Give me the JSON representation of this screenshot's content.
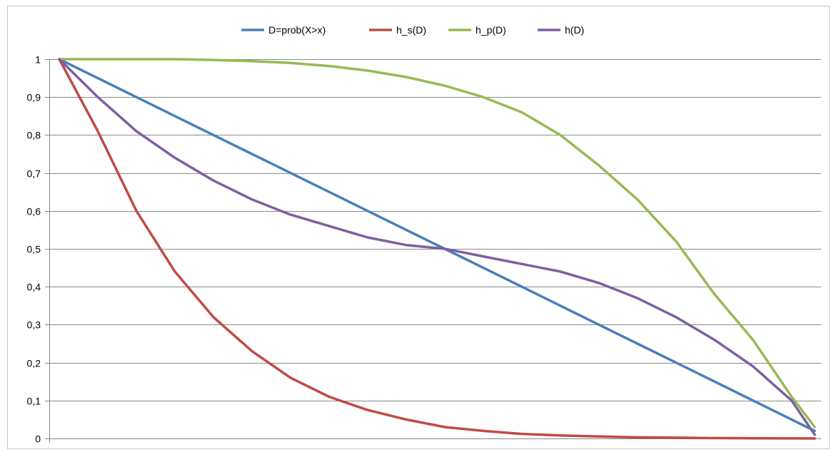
{
  "chart_data": {
    "type": "line",
    "title": "",
    "xlabel": "",
    "ylabel": "",
    "legend_position": "top",
    "grid": true,
    "ylim": [
      0,
      1
    ],
    "yticks": [
      {
        "value": 0,
        "label": "0"
      },
      {
        "value": 0.1,
        "label": "0,1"
      },
      {
        "value": 0.2,
        "label": "0,2"
      },
      {
        "value": 0.3,
        "label": "0,3"
      },
      {
        "value": 0.4,
        "label": "0,4"
      },
      {
        "value": 0.5,
        "label": "0,5"
      },
      {
        "value": 0.6,
        "label": "0,6"
      },
      {
        "value": 0.7,
        "label": "0,7"
      },
      {
        "value": 0.8,
        "label": "0,8"
      },
      {
        "value": 0.9,
        "label": "0,9"
      },
      {
        "value": 1,
        "label": "1"
      }
    ],
    "x": [
      0,
      0.05,
      0.1,
      0.15,
      0.2,
      0.25,
      0.3,
      0.35,
      0.4,
      0.45,
      0.5,
      0.55,
      0.6,
      0.65,
      0.7,
      0.75,
      0.8,
      0.85,
      0.9,
      0.95,
      0.98
    ],
    "series": [
      {
        "name": "D=prob(X>x)",
        "color": "#4a7ebb",
        "values": [
          1,
          0.95,
          0.9,
          0.85,
          0.8,
          0.75,
          0.7,
          0.65,
          0.6,
          0.55,
          0.5,
          0.45,
          0.4,
          0.35,
          0.3,
          0.25,
          0.2,
          0.15,
          0.1,
          0.05,
          0.02
        ]
      },
      {
        "name": "h_s(D)",
        "color": "#be4b48",
        "values": [
          1,
          0.81,
          0.6,
          0.44,
          0.32,
          0.23,
          0.16,
          0.11,
          0.075,
          0.05,
          0.03,
          0.02,
          0.012,
          0.008,
          0.005,
          0.003,
          0.002,
          0.001,
          0.0005,
          0.0002,
          0
        ]
      },
      {
        "name": "h_p(D)",
        "color": "#98b954",
        "values": [
          1,
          1,
          1,
          1,
          0.998,
          0.995,
          0.99,
          0.982,
          0.97,
          0.953,
          0.93,
          0.9,
          0.86,
          0.8,
          0.72,
          0.63,
          0.52,
          0.38,
          0.26,
          0.11,
          0.03
        ]
      },
      {
        "name": "h(D)",
        "color": "#7d60a0",
        "values": [
          1,
          0.9,
          0.81,
          0.74,
          0.68,
          0.63,
          0.59,
          0.56,
          0.53,
          0.51,
          0.5,
          0.48,
          0.46,
          0.44,
          0.41,
          0.37,
          0.32,
          0.26,
          0.19,
          0.1,
          0.01
        ]
      }
    ]
  }
}
